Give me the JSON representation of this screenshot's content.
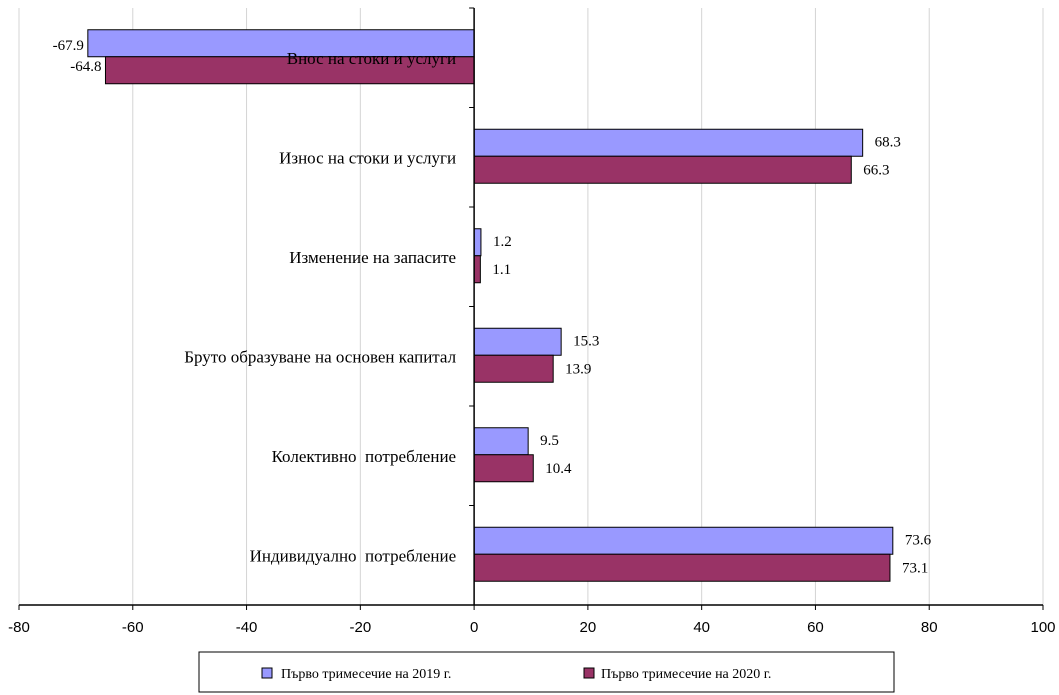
{
  "chart_data": {
    "type": "bar",
    "orientation": "horizontal",
    "categories": [
      "Внос на стоки и услуги",
      "Износ на стоки и услуги",
      "Изменение на запасите",
      "Бруто образуване на основен капитал",
      "Колективно  потребление",
      "Индивидуално  потребление"
    ],
    "series": [
      {
        "name": "Първо тримесечие на 2019 г.",
        "color": "#9999ff",
        "values": [
          -67.9,
          68.3,
          1.2,
          15.3,
          9.5,
          73.6
        ]
      },
      {
        "name": "Първо тримесечие на 2020 г.",
        "color": "#993366",
        "values": [
          -64.8,
          66.3,
          1.1,
          13.9,
          10.4,
          73.1
        ]
      }
    ],
    "value_labels": [
      [
        "-67.9",
        "68.3",
        "1.2",
        "15.3",
        "9.5",
        "73.6"
      ],
      [
        "-64.8",
        "66.3",
        "1.1",
        "13.9",
        "10.4",
        "73.1"
      ]
    ],
    "xlim": [
      -80,
      100
    ],
    "xticks": [
      -80,
      -60,
      -40,
      -20,
      0,
      20,
      40,
      60,
      80,
      100
    ],
    "grid": "vertical",
    "legend_position": "bottom",
    "title": "",
    "xlabel": "",
    "ylabel": ""
  }
}
